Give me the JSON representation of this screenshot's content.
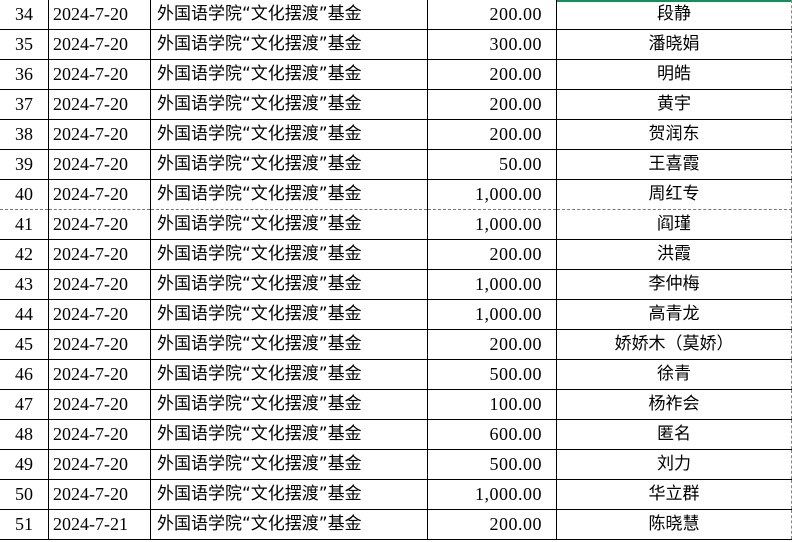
{
  "accent_color": "#1e8a5a",
  "rows": [
    {
      "index": "34",
      "date": "2024-7-20",
      "fund": "外国语学院“文化摆渡”基金",
      "amount": "200.00",
      "name": "段静"
    },
    {
      "index": "35",
      "date": "2024-7-20",
      "fund": "外国语学院“文化摆渡”基金",
      "amount": "300.00",
      "name": "潘晓娟"
    },
    {
      "index": "36",
      "date": "2024-7-20",
      "fund": "外国语学院“文化摆渡”基金",
      "amount": "200.00",
      "name": "明皓"
    },
    {
      "index": "37",
      "date": "2024-7-20",
      "fund": "外国语学院“文化摆渡”基金",
      "amount": "200.00",
      "name": "黄宇"
    },
    {
      "index": "38",
      "date": "2024-7-20",
      "fund": "外国语学院“文化摆渡”基金",
      "amount": "200.00",
      "name": "贺润东"
    },
    {
      "index": "39",
      "date": "2024-7-20",
      "fund": "外国语学院“文化摆渡”基金",
      "amount": "50.00",
      "name": "王喜霞"
    },
    {
      "index": "40",
      "date": "2024-7-20",
      "fund": "外国语学院“文化摆渡”基金",
      "amount": "1,000.00",
      "name": "周红专"
    },
    {
      "index": "41",
      "date": "2024-7-20",
      "fund": "外国语学院“文化摆渡”基金",
      "amount": "1,000.00",
      "name": "阎瑾"
    },
    {
      "index": "42",
      "date": "2024-7-20",
      "fund": "外国语学院“文化摆渡”基金",
      "amount": "200.00",
      "name": "洪霞"
    },
    {
      "index": "43",
      "date": "2024-7-20",
      "fund": "外国语学院“文化摆渡”基金",
      "amount": "1,000.00",
      "name": "李仲梅"
    },
    {
      "index": "44",
      "date": "2024-7-20",
      "fund": "外国语学院“文化摆渡”基金",
      "amount": "1,000.00",
      "name": "高青龙"
    },
    {
      "index": "45",
      "date": "2024-7-20",
      "fund": "外国语学院“文化摆渡”基金",
      "amount": "200.00",
      "name": "娇娇木（莫娇）"
    },
    {
      "index": "46",
      "date": "2024-7-20",
      "fund": "外国语学院“文化摆渡”基金",
      "amount": "500.00",
      "name": "徐青"
    },
    {
      "index": "47",
      "date": "2024-7-20",
      "fund": "外国语学院“文化摆渡”基金",
      "amount": "100.00",
      "name": "杨祚会"
    },
    {
      "index": "48",
      "date": "2024-7-20",
      "fund": "外国语学院“文化摆渡”基金",
      "amount": "600.00",
      "name": "匿名"
    },
    {
      "index": "49",
      "date": "2024-7-20",
      "fund": "外国语学院“文化摆渡”基金",
      "amount": "500.00",
      "name": "刘力"
    },
    {
      "index": "50",
      "date": "2024-7-20",
      "fund": "外国语学院“文化摆渡”基金",
      "amount": "1,000.00",
      "name": "华立群"
    },
    {
      "index": "51",
      "date": "2024-7-21",
      "fund": "外国语学院“文化摆渡”基金",
      "amount": "200.00",
      "name": "陈晓慧"
    }
  ]
}
